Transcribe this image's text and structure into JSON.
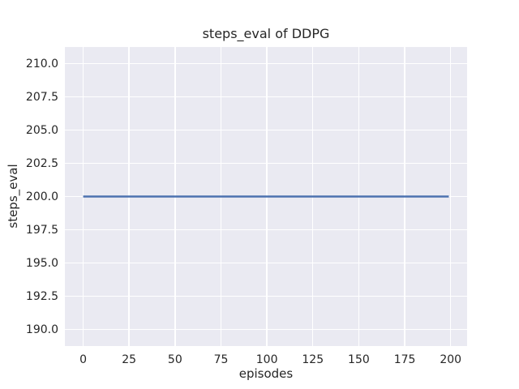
{
  "chart_data": {
    "type": "line",
    "title": "steps_eval of DDPG",
    "xlabel": "episodes",
    "ylabel": "steps_eval",
    "xlim": [
      -9.95,
      208.95
    ],
    "ylim": [
      188.75,
      211.25
    ],
    "grid": true,
    "legend": "none",
    "xticks": [
      {
        "v": 0,
        "label": "0"
      },
      {
        "v": 25,
        "label": "25"
      },
      {
        "v": 50,
        "label": "50"
      },
      {
        "v": 75,
        "label": "75"
      },
      {
        "v": 100,
        "label": "100"
      },
      {
        "v": 125,
        "label": "125"
      },
      {
        "v": 150,
        "label": "150"
      },
      {
        "v": 175,
        "label": "175"
      },
      {
        "v": 200,
        "label": "200"
      }
    ],
    "yticks": [
      {
        "v": 190,
        "label": "190.0"
      },
      {
        "v": 192.5,
        "label": "192.5"
      },
      {
        "v": 195,
        "label": "195.0"
      },
      {
        "v": 197.5,
        "label": "197.5"
      },
      {
        "v": 200,
        "label": "200.0"
      },
      {
        "v": 202.5,
        "label": "202.5"
      },
      {
        "v": 205,
        "label": "205.0"
      },
      {
        "v": 207.5,
        "label": "207.5"
      },
      {
        "v": 210,
        "label": "210.0"
      }
    ],
    "series": [
      {
        "name": "steps_eval",
        "color": "#4c72b0",
        "linewidth": 2.4,
        "points": [
          [
            0,
            200
          ],
          [
            199,
            200
          ]
        ]
      }
    ],
    "colors": {
      "figure_bg": "#ffffff",
      "axes_bg": "#eaeaf2",
      "grid": "#ffffff",
      "text": "#262626"
    }
  }
}
